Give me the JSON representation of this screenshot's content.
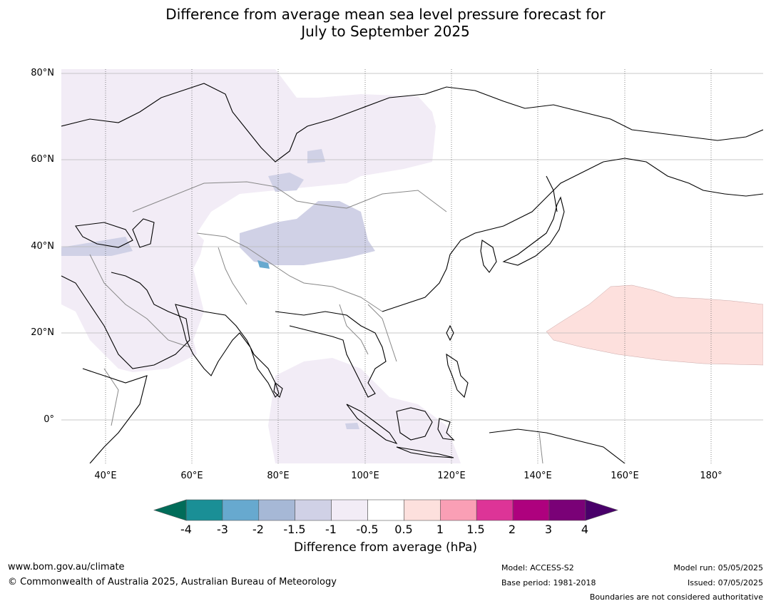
{
  "title_line1": "Difference from average mean sea level pressure forecast for",
  "title_line2": "July to September 2025",
  "lat_labels": [
    "80°N",
    "60°N",
    "40°N",
    "20°N",
    "0°"
  ],
  "lon_labels": [
    "40°E",
    "60°E",
    "80°E",
    "100°E",
    "120°E",
    "140°E",
    "160°E",
    "180°"
  ],
  "colorbar": {
    "ticks": [
      "-4",
      "-3",
      "-2",
      "-1.5",
      "-1",
      "-0.5",
      "0.5",
      "1",
      "1.5",
      "2",
      "3",
      "4"
    ],
    "colors": [
      "#1a8f96",
      "#67a9cf",
      "#a6b8d6",
      "#d0d1e6",
      "#f2ecf6",
      "#ffffff",
      "#fde0dd",
      "#fa9fb5",
      "#dd3497",
      "#ae017e",
      "#7a0177"
    ],
    "under_color": "#016c59",
    "over_color": "#49006a",
    "label": "Difference from average (hPa)"
  },
  "legend_colors": {
    "land_outline": "#000000",
    "borders": "#888888"
  },
  "footer": {
    "website": "www.bom.gov.au/climate",
    "copyright": "© Commonwealth of Australia 2025, Australian Bureau of Meteorology",
    "model": "Model: ACCESS-S2",
    "base_period": "Base period: 1981-2018",
    "model_run": "Model run: 05/05/2025",
    "issued": "Issued: 07/05/2025",
    "disclaimer": "Boundaries are not considered authoritative"
  }
}
